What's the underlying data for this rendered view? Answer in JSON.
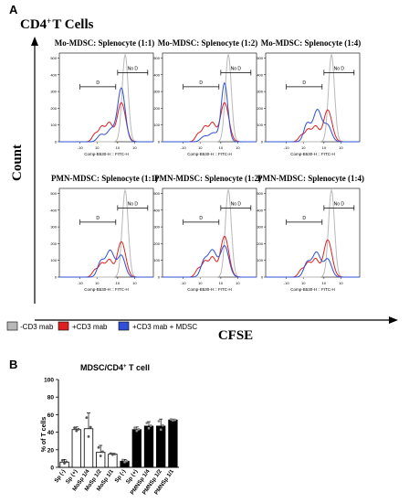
{
  "panel_a": {
    "label": "A",
    "title_main": "CD4",
    "title_sup": "+",
    "title_rest": "T Cells",
    "y_label": "Count",
    "x_label": "CFSE",
    "legend": [
      "-CD3 mab",
      "+CD3 mab",
      "+CD3 mab + MDSC"
    ],
    "legend_colors": [
      "#b8b8b8",
      "#e02020",
      "#2e4fd6"
    ],
    "gate_d_label": "D",
    "gate_nod_label": "No D",
    "axis_title": "Comp-B530-H :: FITC-H",
    "y_ticks": [
      "0",
      "100",
      "200",
      "300",
      "400",
      "500"
    ],
    "x_ticks": [
      "10³",
      "10⁴",
      "10⁵"
    ],
    "x_tick_prefix": "-10",
    "x_tick_short": [
      "10",
      "10",
      "10"
    ],
    "x_tick_exp": [
      "3",
      "4",
      "5"
    ],
    "x_neg_exp": "4",
    "subplot_titles": [
      "Mo-MDSC: Splenocyte (1:1)",
      "Mo-MDSC: Splenocyte (1:2)",
      "Mo-MDSC: Splenocyte (1:4)",
      "PMN-MDSC: Splenocyte (1:1)",
      "PMN-MDSC: Splenocyte (1:2)",
      "PMN-MDSC: Splenocyte (1:4)"
    ]
  },
  "panel_b": {
    "label": "B"
  },
  "chart_data": {
    "type": "bar",
    "title": "MDSC/CD4",
    "title_sup": "+",
    "title_rest": " T cell",
    "ylabel": "% of T cells",
    "ylim": [
      0,
      100
    ],
    "y_ticks": [
      "0",
      "20",
      "40",
      "60",
      "80",
      "100"
    ],
    "categories": [
      "Sp (-)",
      "Sp (+)",
      "MoSp 1/4",
      "MoSp 1/2",
      "MoSp 1/1",
      "Sp (-)",
      "Sp (+)",
      "PMNSp 1/4",
      "PMNSp 1/2",
      "PMNSp 1/1"
    ],
    "values": [
      6,
      43,
      44,
      17,
      15,
      7,
      43,
      47,
      47,
      54
    ],
    "errors": [
      3,
      3,
      18,
      8,
      1,
      2,
      3,
      5,
      8,
      1
    ],
    "fill": [
      "#ffffff",
      "#ffffff",
      "#ffffff",
      "#ffffff",
      "#ffffff",
      "#000000",
      "#000000",
      "#000000",
      "#000000",
      "#000000"
    ]
  }
}
